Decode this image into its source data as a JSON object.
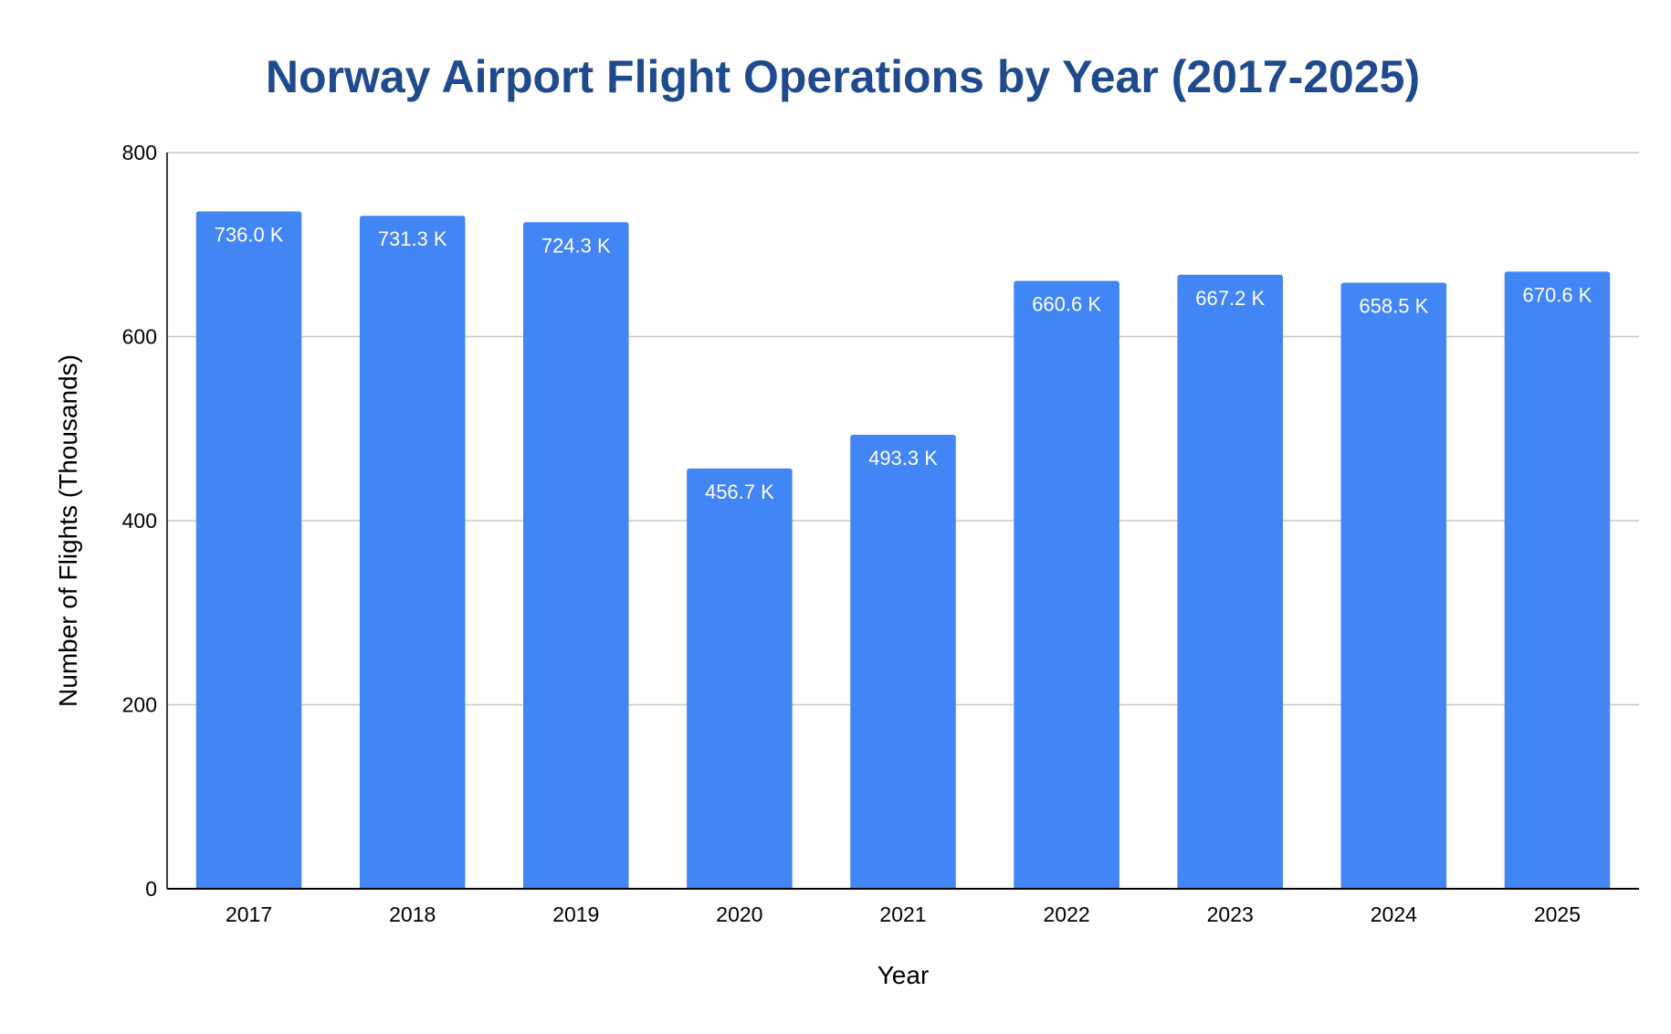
{
  "colors": {
    "title": "#1f4b8e",
    "bar": "#4285f4",
    "gridline": "#c8c8c8",
    "axis": "#000000",
    "data_label": "#ffffff"
  },
  "chart_data": {
    "type": "bar",
    "title": "Norway Airport Flight Operations by Year (2017-2025)",
    "xlabel": "Year",
    "ylabel": "Number of Flights (Thousands)",
    "categories": [
      "2017",
      "2018",
      "2019",
      "2020",
      "2021",
      "2022",
      "2023",
      "2024",
      "2025"
    ],
    "values": [
      736.0,
      731.3,
      724.3,
      456.7,
      493.3,
      660.6,
      667.2,
      658.5,
      670.6
    ],
    "data_labels": [
      "736.0 K",
      "731.3 K",
      "724.3 K",
      "456.7 K",
      "493.3 K",
      "660.6 K",
      "667.2 K",
      "658.5 K",
      "670.6 K"
    ],
    "ylim": [
      0,
      800
    ],
    "yticks": [
      0,
      200,
      400,
      600,
      800
    ],
    "ytick_labels": [
      "0",
      "200",
      "400",
      "600",
      "800"
    ],
    "grid": true,
    "legend": "none"
  }
}
